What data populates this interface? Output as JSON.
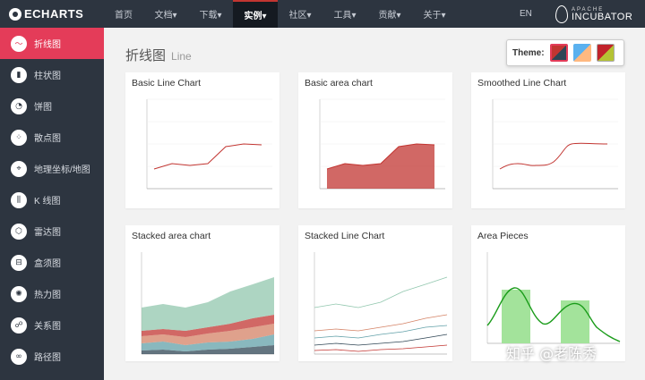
{
  "topbar": {
    "logo_text": "ECHARTS",
    "nav": [
      {
        "label": "首页",
        "w": 44
      },
      {
        "label": "文档▾",
        "w": 50
      },
      {
        "label": "下载▾",
        "w": 50
      },
      {
        "label": "实例▾",
        "w": 50,
        "active": true
      },
      {
        "label": "社区▾",
        "w": 50
      },
      {
        "label": "工具▾",
        "w": 50
      },
      {
        "label": "贡献▾",
        "w": 50
      },
      {
        "label": "关于▾",
        "w": 50
      }
    ],
    "lang": "EN",
    "incubator_top": "APACHE",
    "incubator_bottom": "INCUBATOR"
  },
  "sidebar": {
    "items": [
      {
        "label": "折线图",
        "icon": "line-chart-icon",
        "glyph": "〜",
        "active": true
      },
      {
        "label": "柱状图",
        "icon": "bar-chart-icon",
        "glyph": "▮"
      },
      {
        "label": "饼图",
        "icon": "pie-chart-icon",
        "glyph": "◔"
      },
      {
        "label": "散点图",
        "icon": "scatter-chart-icon",
        "glyph": "⁘"
      },
      {
        "label": "地理坐标/地图",
        "icon": "map-icon",
        "glyph": "⌖"
      },
      {
        "label": "K 线图",
        "icon": "candlestick-icon",
        "glyph": "⫼"
      },
      {
        "label": "雷达图",
        "icon": "radar-icon",
        "glyph": "⬡"
      },
      {
        "label": "盒须图",
        "icon": "boxplot-icon",
        "glyph": "⊟"
      },
      {
        "label": "热力图",
        "icon": "heatmap-icon",
        "glyph": "✺"
      },
      {
        "label": "关系图",
        "icon": "graph-icon",
        "glyph": "☍"
      },
      {
        "label": "路径图",
        "icon": "lines-icon",
        "glyph": "∞"
      }
    ]
  },
  "main": {
    "title": "折线图",
    "subtitle": "Line",
    "theme_label": "Theme:"
  },
  "cards": [
    {
      "title": "Basic Line Chart",
      "kind": "basic-line"
    },
    {
      "title": "Basic area chart",
      "kind": "basic-area"
    },
    {
      "title": "Smoothed Line Chart",
      "kind": "smooth-line"
    },
    {
      "title": "Stacked area chart",
      "kind": "stacked-area"
    },
    {
      "title": "Stacked Line Chart",
      "kind": "stacked-line"
    },
    {
      "title": "Area Pieces",
      "kind": "area-pieces"
    }
  ],
  "watermark": "知乎 @老陈秀",
  "colors": {
    "accent": "#e43c59",
    "nav_bg": "#2d3540",
    "series_red": "#c23531"
  }
}
